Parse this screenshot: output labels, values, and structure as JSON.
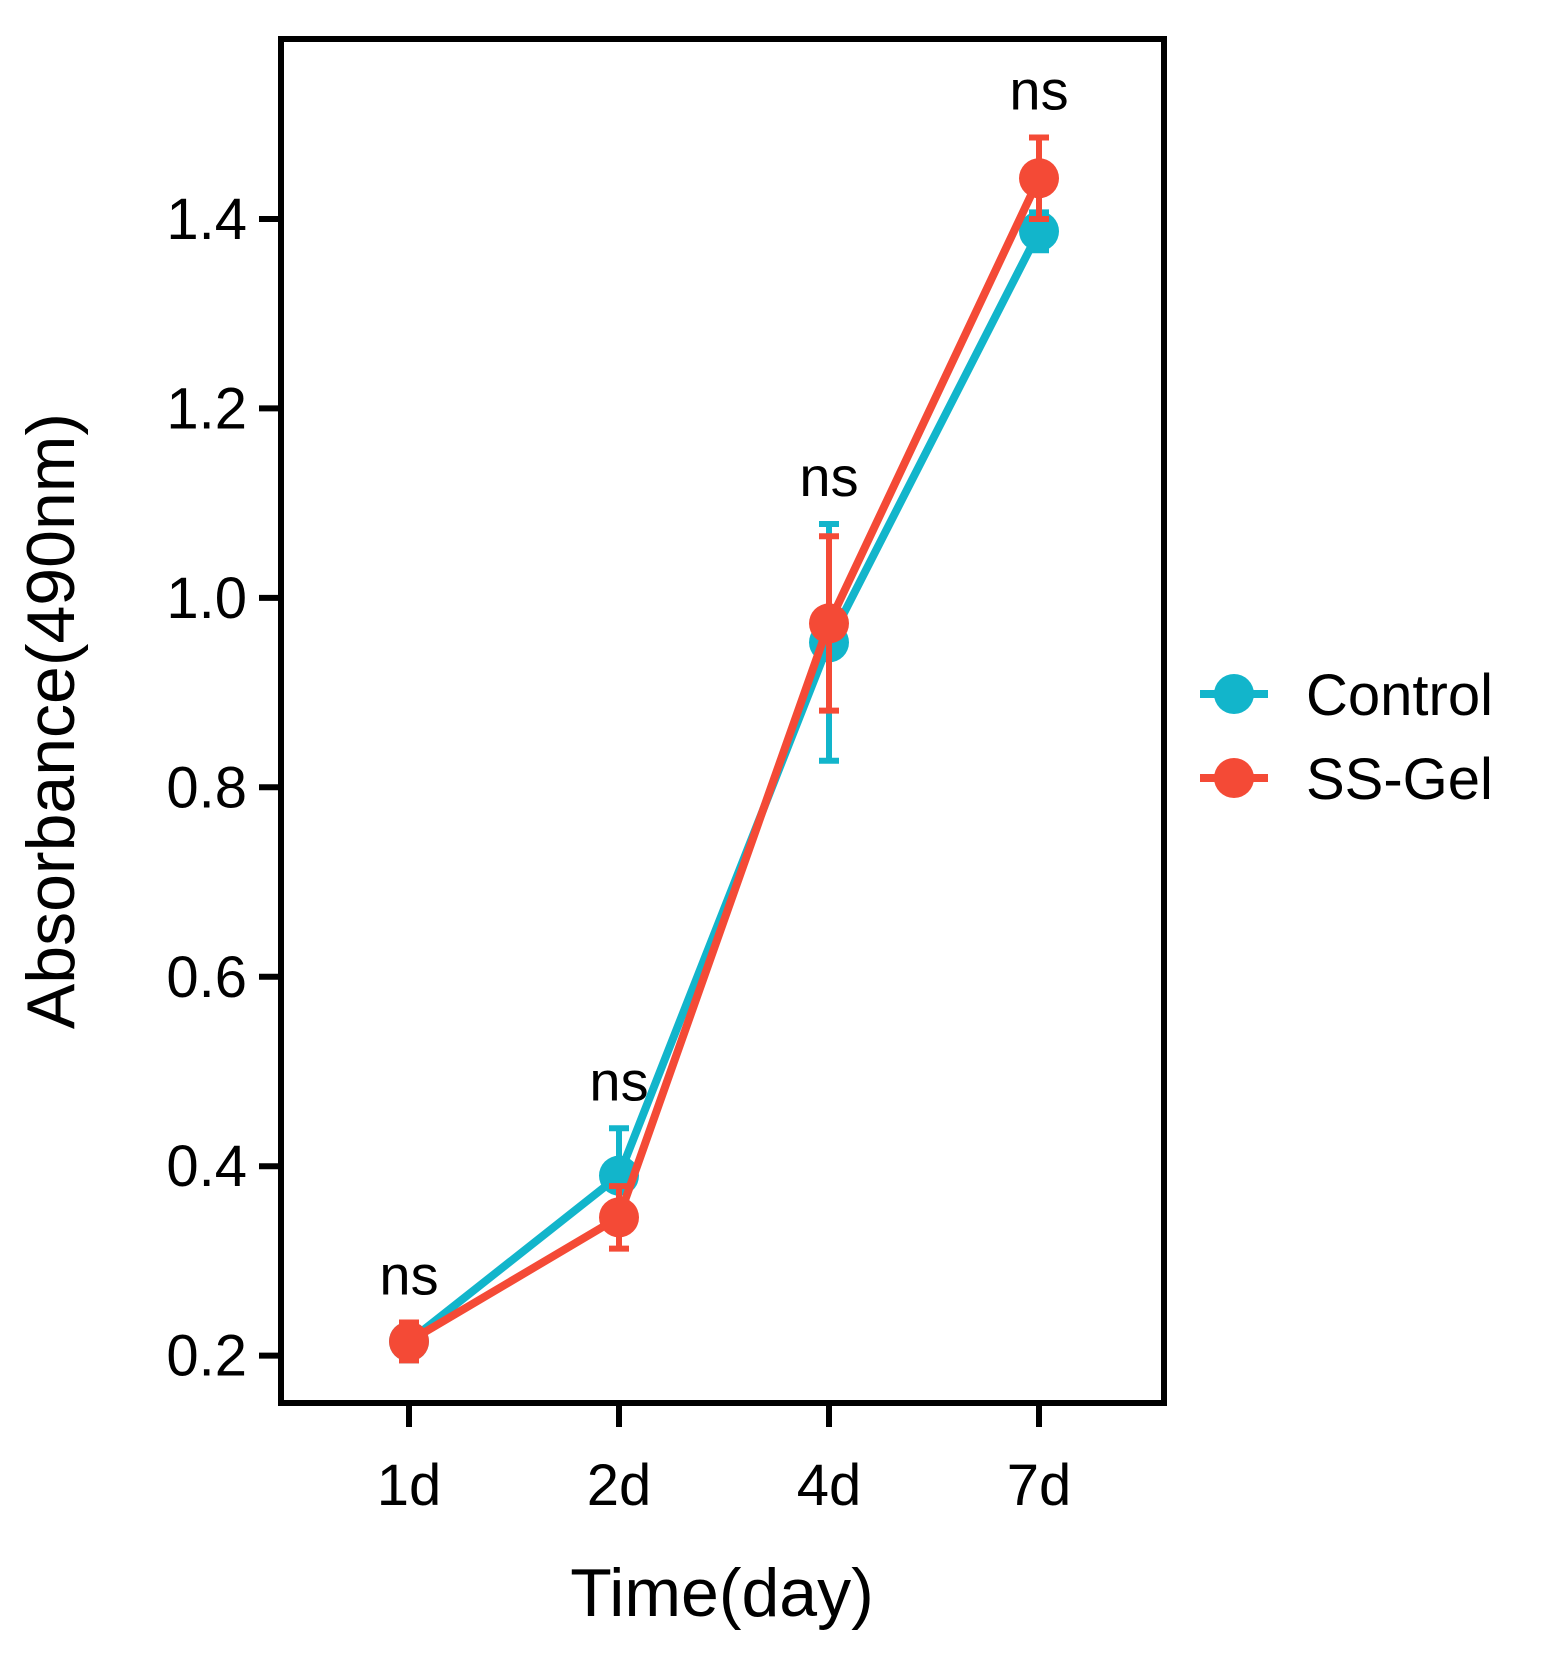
{
  "chart_data": {
    "type": "line",
    "title": "",
    "xlabel": "Time(day)",
    "ylabel": "Absorbance(490nm)",
    "categories": [
      "1d",
      "2d",
      "4d",
      "7d"
    ],
    "ylim": [
      0.15,
      1.59
    ],
    "yticks": [
      "0.2",
      "0.4",
      "0.6",
      "0.8",
      "1.0",
      "1.2",
      "1.4"
    ],
    "annotations": [
      "ns",
      "ns",
      "ns",
      "ns"
    ],
    "legend_position": "right",
    "series": [
      {
        "name": "Control",
        "color": "#12B5CB",
        "values": [
          0.215,
          0.39,
          0.953,
          1.387
        ],
        "errors": [
          0.02,
          0.05,
          0.125,
          0.02
        ]
      },
      {
        "name": "SS-Gel",
        "color": "#F44A36",
        "values": [
          0.215,
          0.346,
          0.973,
          1.443
        ],
        "errors": [
          0.02,
          0.033,
          0.092,
          0.043
        ]
      }
    ]
  }
}
